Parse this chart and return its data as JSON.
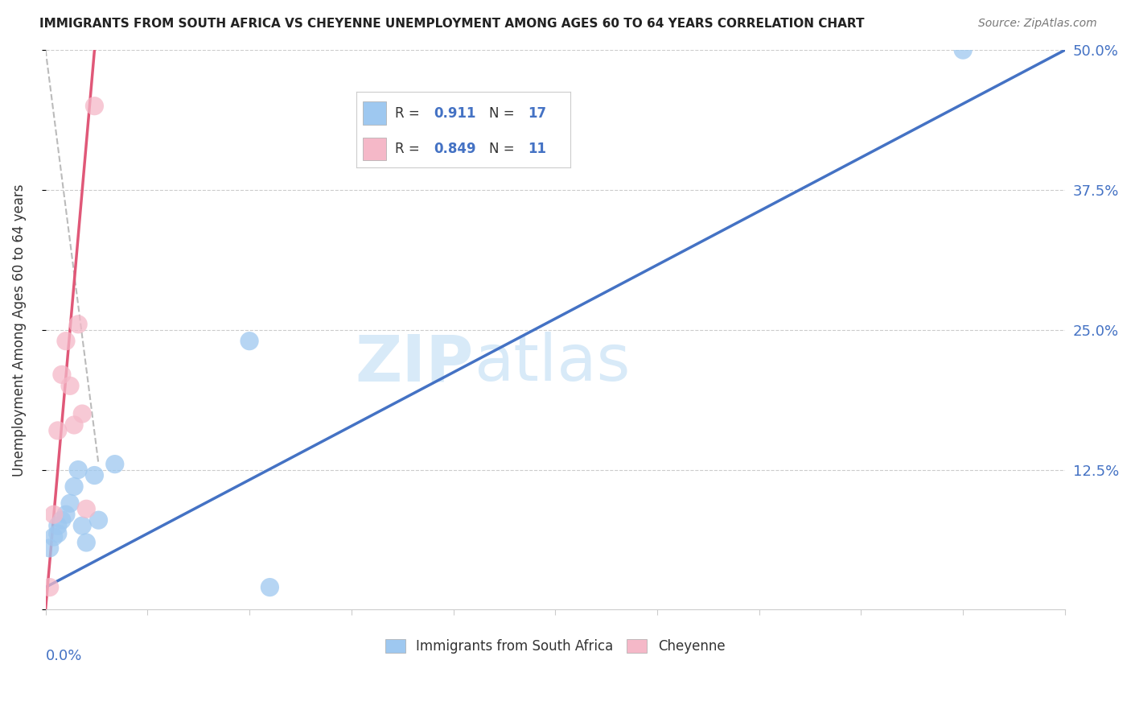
{
  "title": "IMMIGRANTS FROM SOUTH AFRICA VS CHEYENNE UNEMPLOYMENT AMONG AGES 60 TO 64 YEARS CORRELATION CHART",
  "source": "Source: ZipAtlas.com",
  "ylabel": "Unemployment Among Ages 60 to 64 years",
  "xlim": [
    0.0,
    0.25
  ],
  "ylim": [
    0.0,
    0.5
  ],
  "x_ticks_minor": [
    0.025,
    0.05,
    0.075,
    0.1,
    0.125,
    0.15,
    0.175,
    0.2,
    0.225
  ],
  "y_ticks": [
    0.0,
    0.125,
    0.25,
    0.375,
    0.5
  ],
  "y_labels_right": [
    "",
    "12.5%",
    "25.0%",
    "37.5%",
    "50.0%"
  ],
  "blue_scatter_x": [
    0.001,
    0.002,
    0.003,
    0.003,
    0.004,
    0.005,
    0.006,
    0.007,
    0.008,
    0.009,
    0.01,
    0.012,
    0.013,
    0.017,
    0.05,
    0.055,
    0.225
  ],
  "blue_scatter_y": [
    0.055,
    0.065,
    0.068,
    0.075,
    0.08,
    0.085,
    0.095,
    0.11,
    0.125,
    0.075,
    0.06,
    0.12,
    0.08,
    0.13,
    0.24,
    0.02,
    0.5
  ],
  "pink_scatter_x": [
    0.001,
    0.002,
    0.003,
    0.004,
    0.005,
    0.006,
    0.007,
    0.008,
    0.009,
    0.01,
    0.012
  ],
  "pink_scatter_y": [
    0.02,
    0.085,
    0.16,
    0.21,
    0.24,
    0.2,
    0.165,
    0.255,
    0.175,
    0.09,
    0.45
  ],
  "blue_line_x": [
    0.0,
    0.25
  ],
  "blue_line_y": [
    0.02,
    0.5
  ],
  "pink_line_x": [
    0.0,
    0.012
  ],
  "pink_line_y": [
    0.0,
    0.5
  ],
  "gray_dash_line_x": [
    0.0,
    0.013
  ],
  "gray_dash_line_y": [
    0.5,
    0.13
  ],
  "blue_scatter_color": "#9EC8F0",
  "blue_line_color": "#4472C4",
  "pink_scatter_color": "#F5B8C8",
  "pink_line_color": "#E05878",
  "gray_dash_color": "#BBBBBB",
  "legend_R1": "0.911",
  "legend_N1": "17",
  "legend_R2": "0.849",
  "legend_N2": "11",
  "legend_label1": "Immigrants from South Africa",
  "legend_label2": "Cheyenne",
  "watermark": "ZIPatlas",
  "watermark_color": "#D8EAF8",
  "background_color": "#ffffff"
}
